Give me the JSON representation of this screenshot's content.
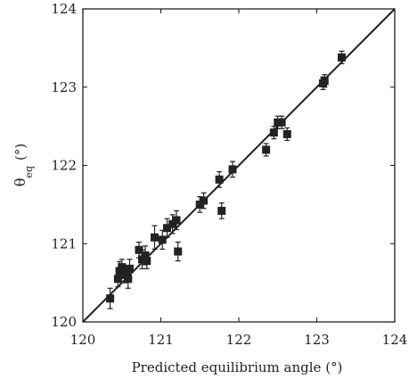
{
  "chart_data": {
    "type": "scatter",
    "title": "",
    "xlabel": "Predicted equilibrium angle (°)",
    "ylabel": {
      "main": "θ",
      "sub": "eq",
      "unit": "(°)"
    },
    "xlim": [
      120,
      124
    ],
    "ylim": [
      120,
      124
    ],
    "xticks": [
      "120",
      "121",
      "122",
      "123",
      "124"
    ],
    "yticks": [
      "120",
      "121",
      "122",
      "123",
      "124"
    ],
    "grid": false,
    "legend": "none",
    "marker": "square",
    "marker_color": "#222222",
    "reference_line": {
      "type": "identity",
      "x": [
        120,
        124
      ],
      "y": [
        120,
        124
      ]
    },
    "series": [
      {
        "points": [
          {
            "x": 120.35,
            "y": 120.3,
            "err": 0.13
          },
          {
            "x": 120.45,
            "y": 120.55,
            "err": 0.1
          },
          {
            "x": 120.47,
            "y": 120.65,
            "err": 0.12
          },
          {
            "x": 120.5,
            "y": 120.7,
            "err": 0.1
          },
          {
            "x": 120.55,
            "y": 120.6,
            "err": 0.1
          },
          {
            "x": 120.58,
            "y": 120.55,
            "err": 0.12
          },
          {
            "x": 120.6,
            "y": 120.68,
            "err": 0.12
          },
          {
            "x": 120.72,
            "y": 120.92,
            "err": 0.1
          },
          {
            "x": 120.76,
            "y": 120.8,
            "err": 0.12
          },
          {
            "x": 120.8,
            "y": 120.85,
            "err": 0.12
          },
          {
            "x": 120.82,
            "y": 120.78,
            "err": 0.1
          },
          {
            "x": 120.92,
            "y": 121.08,
            "err": 0.15
          },
          {
            "x": 121.02,
            "y": 121.05,
            "err": 0.12
          },
          {
            "x": 121.08,
            "y": 121.2,
            "err": 0.12
          },
          {
            "x": 121.15,
            "y": 121.25,
            "err": 0.12
          },
          {
            "x": 121.2,
            "y": 121.3,
            "err": 0.12
          },
          {
            "x": 121.22,
            "y": 120.9,
            "err": 0.12
          },
          {
            "x": 121.5,
            "y": 121.5,
            "err": 0.1
          },
          {
            "x": 121.55,
            "y": 121.55,
            "err": 0.1
          },
          {
            "x": 121.75,
            "y": 121.82,
            "err": 0.1
          },
          {
            "x": 121.78,
            "y": 121.42,
            "err": 0.1
          },
          {
            "x": 121.92,
            "y": 121.95,
            "err": 0.1
          },
          {
            "x": 122.35,
            "y": 122.2,
            "err": 0.08
          },
          {
            "x": 122.45,
            "y": 122.42,
            "err": 0.08
          },
          {
            "x": 122.5,
            "y": 122.55,
            "err": 0.08
          },
          {
            "x": 122.55,
            "y": 122.55,
            "err": 0.08
          },
          {
            "x": 122.62,
            "y": 122.4,
            "err": 0.08
          },
          {
            "x": 123.08,
            "y": 123.05,
            "err": 0.08
          },
          {
            "x": 123.1,
            "y": 123.08,
            "err": 0.08
          },
          {
            "x": 123.32,
            "y": 123.38,
            "err": 0.08
          }
        ]
      }
    ]
  }
}
